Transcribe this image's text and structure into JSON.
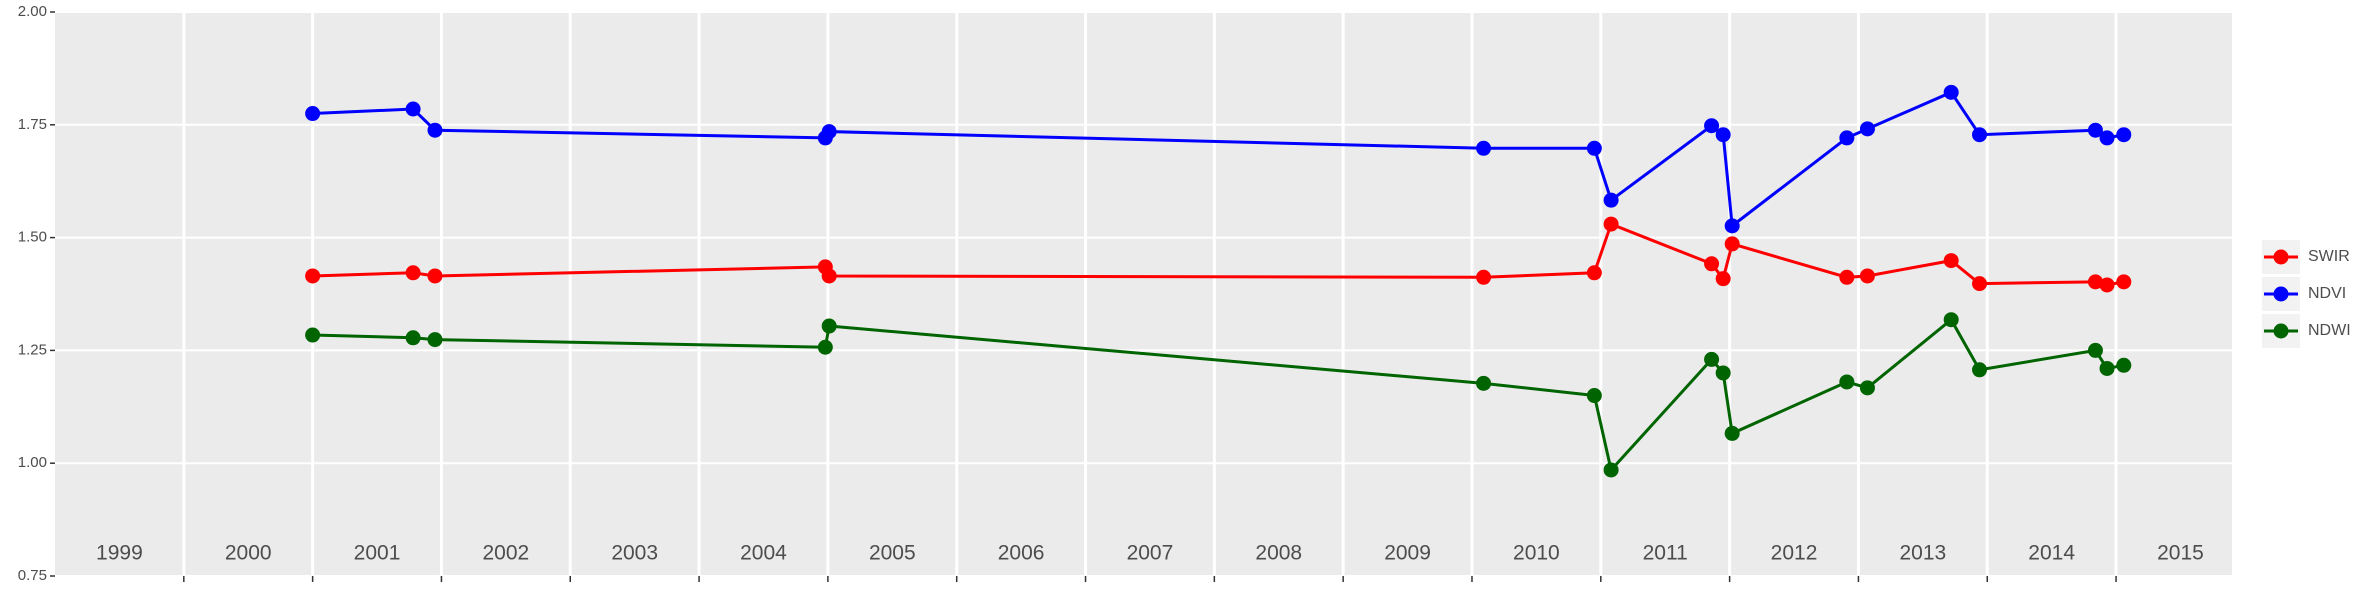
{
  "chart_data": {
    "type": "line",
    "x": [
      2001.0,
      2001.78,
      2001.95,
      2004.98,
      2005.01,
      2010.09,
      2010.95,
      2011.08,
      2011.86,
      2011.95,
      2012.02,
      2012.91,
      2013.07,
      2013.72,
      2013.94,
      2014.84,
      2014.93,
      2015.06
    ],
    "series": [
      {
        "name": "SWIR",
        "color": "#ff0000",
        "values": [
          1.415,
          1.422,
          1.415,
          1.435,
          1.415,
          1.412,
          1.422,
          1.53,
          1.442,
          1.409,
          1.486,
          1.412,
          1.415,
          1.449,
          1.398,
          1.402,
          1.395,
          1.402
        ]
      },
      {
        "name": "NDVI",
        "color": "#0000ff",
        "values": [
          1.775,
          1.785,
          1.738,
          1.721,
          1.735,
          1.698,
          1.698,
          1.583,
          1.748,
          1.728,
          1.526,
          1.721,
          1.741,
          1.822,
          1.728,
          1.738,
          1.721,
          1.728
        ]
      },
      {
        "name": "NDWI",
        "color": "#006400",
        "values": [
          1.284,
          1.278,
          1.274,
          1.257,
          1.304,
          1.177,
          1.15,
          0.985,
          1.23,
          1.2,
          1.066,
          1.18,
          1.167,
          1.318,
          1.207,
          1.25,
          1.21,
          1.217
        ]
      }
    ],
    "xlim": [
      1999,
      2015.9
    ],
    "xticks": [
      2000,
      2001,
      2002,
      2003,
      2004,
      2005,
      2006,
      2007,
      2008,
      2009,
      2010,
      2011,
      2012,
      2013,
      2014,
      2015
    ],
    "year_labels": [
      "1999",
      "2000",
      "2001",
      "2002",
      "2003",
      "2004",
      "2005",
      "2006",
      "2007",
      "2008",
      "2009",
      "2010",
      "2011",
      "2012",
      "2013",
      "2014",
      "2015"
    ],
    "ylim": [
      0.75,
      2.0
    ],
    "yticks": [
      {
        "value": 0.75,
        "label": "0.75"
      },
      {
        "value": 1.0,
        "label": "1.00"
      },
      {
        "value": 1.25,
        "label": "1.25"
      },
      {
        "value": 1.5,
        "label": "1.50"
      },
      {
        "value": 1.75,
        "label": "1.75"
      },
      {
        "value": 2.0,
        "label": "2.00"
      }
    ],
    "grid": true,
    "legend": "right"
  }
}
